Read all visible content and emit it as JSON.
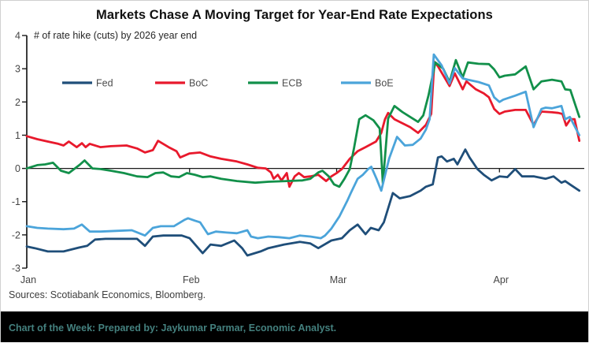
{
  "chart_data": {
    "type": "line",
    "title": "Markets Chase A Moving Target for Year-End Rate Expectations",
    "subtitle": "# of rate hike (cuts) by 2026 year end",
    "grid": "off",
    "legend_position": "top-left-inside",
    "x_axis": {
      "unit": "days since Jan 1",
      "domain": [
        0,
        106
      ],
      "ticks": [
        {
          "label": "Jan",
          "day": 0
        },
        {
          "label": "Feb",
          "day": 31
        },
        {
          "label": "Mar",
          "day": 59
        },
        {
          "label": "Apr",
          "day": 90
        }
      ]
    },
    "y_axis": {
      "min": -3,
      "max": 4,
      "tick_labels": [
        "4",
        "3",
        "2",
        "1",
        "0",
        "-1",
        "-2",
        "-3"
      ],
      "tick_values": [
        4,
        3,
        2,
        1,
        0,
        -1,
        -2,
        -3
      ]
    },
    "series": [
      {
        "name": "Fed",
        "color": "#1F4E79",
        "points": [
          [
            0,
            -2.35
          ],
          [
            1.5,
            -2.4
          ],
          [
            4,
            -2.5
          ],
          [
            7,
            -2.5
          ],
          [
            10,
            -2.38
          ],
          [
            11.5,
            -2.33
          ],
          [
            13,
            -2.14
          ],
          [
            15,
            -2.12
          ],
          [
            18,
            -2.12
          ],
          [
            21,
            -2.12
          ],
          [
            22.5,
            -2.33
          ],
          [
            24,
            -2.05
          ],
          [
            26,
            -2.02
          ],
          [
            28,
            -2.02
          ],
          [
            29.5,
            -2.02
          ],
          [
            31,
            -2.1
          ],
          [
            33.5,
            -2.55
          ],
          [
            35,
            -2.29
          ],
          [
            37,
            -2.33
          ],
          [
            39.5,
            -2.17
          ],
          [
            41,
            -2.4
          ],
          [
            42,
            -2.62
          ],
          [
            44.5,
            -2.5
          ],
          [
            46,
            -2.4
          ],
          [
            49,
            -2.29
          ],
          [
            52,
            -2.21
          ],
          [
            54,
            -2.26
          ],
          [
            55.5,
            -2.4
          ],
          [
            58,
            -2.17
          ],
          [
            60,
            -2.1
          ],
          [
            61.5,
            -1.86
          ],
          [
            63,
            -1.69
          ],
          [
            64.5,
            -1.98
          ],
          [
            65.5,
            -1.79
          ],
          [
            67,
            -1.86
          ],
          [
            68,
            -1.62
          ],
          [
            69.7,
            -0.74
          ],
          [
            71,
            -0.9
          ],
          [
            73,
            -0.83
          ],
          [
            75,
            -0.67
          ],
          [
            76,
            -0.55
          ],
          [
            77.3,
            -0.48
          ],
          [
            78.3,
            0.33
          ],
          [
            79,
            0.36
          ],
          [
            80,
            0.21
          ],
          [
            81.3,
            0.29
          ],
          [
            82,
            0.12
          ],
          [
            83.5,
            0.57
          ],
          [
            84.3,
            0.33
          ],
          [
            85.8,
            -0.02
          ],
          [
            87,
            -0.19
          ],
          [
            88.5,
            -0.36
          ],
          [
            90,
            -0.24
          ],
          [
            91.5,
            -0.26
          ],
          [
            93,
            -0.02
          ],
          [
            94.3,
            -0.24
          ],
          [
            96.6,
            -0.24
          ],
          [
            98.8,
            -0.31
          ],
          [
            100.3,
            -0.24
          ],
          [
            101.8,
            -0.43
          ],
          [
            102.5,
            -0.38
          ],
          [
            103.4,
            -0.48
          ],
          [
            105.2,
            -0.67
          ]
        ]
      },
      {
        "name": "BoC",
        "color": "#E8192C",
        "points": [
          [
            0,
            0.97
          ],
          [
            2,
            0.88
          ],
          [
            4,
            0.81
          ],
          [
            6,
            0.74
          ],
          [
            7,
            0.69
          ],
          [
            8,
            0.81
          ],
          [
            9.5,
            0.64
          ],
          [
            10.5,
            0.76
          ],
          [
            11.2,
            0.64
          ],
          [
            12,
            0.74
          ],
          [
            14,
            0.64
          ],
          [
            16,
            0.67
          ],
          [
            19,
            0.69
          ],
          [
            21,
            0.6
          ],
          [
            22.5,
            0.48
          ],
          [
            24,
            0.55
          ],
          [
            25,
            0.83
          ],
          [
            27,
            0.64
          ],
          [
            28.5,
            0.52
          ],
          [
            29.2,
            0.33
          ],
          [
            31,
            0.45
          ],
          [
            33,
            0.48
          ],
          [
            35,
            0.36
          ],
          [
            37,
            0.29
          ],
          [
            40,
            0.21
          ],
          [
            42,
            0.12
          ],
          [
            44,
            0.02
          ],
          [
            45.5,
            0
          ],
          [
            46.5,
            -0.12
          ],
          [
            47,
            -0.31
          ],
          [
            47.8,
            -0.19
          ],
          [
            48.5,
            -0.36
          ],
          [
            49.5,
            -0.14
          ],
          [
            50,
            -0.55
          ],
          [
            51,
            -0.24
          ],
          [
            51.8,
            -0.14
          ],
          [
            52.8,
            -0.26
          ],
          [
            54,
            -0.24
          ],
          [
            55.5,
            -0.19
          ],
          [
            57,
            -0.38
          ],
          [
            58,
            -0.24
          ],
          [
            59,
            -0.14
          ],
          [
            60,
            -0.02
          ],
          [
            61.5,
            0.29
          ],
          [
            63,
            0.52
          ],
          [
            64.5,
            0.64
          ],
          [
            66.5,
            0.81
          ],
          [
            67.5,
            1.07
          ],
          [
            68.2,
            1.48
          ],
          [
            68.8,
            1.67
          ],
          [
            70,
            1.48
          ],
          [
            71.5,
            1.36
          ],
          [
            73,
            1.24
          ],
          [
            74.5,
            1.07
          ],
          [
            76,
            1.31
          ],
          [
            77,
            1.64
          ],
          [
            77.6,
            3.21
          ],
          [
            78.3,
            3.07
          ],
          [
            80.5,
            2.48
          ],
          [
            81.5,
            2.86
          ],
          [
            83,
            2.38
          ],
          [
            83.7,
            2.62
          ],
          [
            85.5,
            2.38
          ],
          [
            87,
            2.26
          ],
          [
            88,
            2.14
          ],
          [
            89,
            1.79
          ],
          [
            90,
            1.64
          ],
          [
            91,
            1.71
          ],
          [
            93,
            1.76
          ],
          [
            95,
            1.76
          ],
          [
            96.5,
            1.31
          ],
          [
            98,
            1.71
          ],
          [
            100,
            1.69
          ],
          [
            101.2,
            1.67
          ],
          [
            102,
            1.64
          ],
          [
            102.7,
            1.29
          ],
          [
            103.5,
            1.48
          ],
          [
            104.3,
            1.48
          ],
          [
            105.2,
            0.83
          ]
        ]
      },
      {
        "name": "ECB",
        "color": "#12904A",
        "points": [
          [
            0,
            0
          ],
          [
            2,
            0.1
          ],
          [
            3.5,
            0.12
          ],
          [
            5,
            0.17
          ],
          [
            6.5,
            -0.07
          ],
          [
            8,
            -0.14
          ],
          [
            10,
            0.1
          ],
          [
            11,
            0.24
          ],
          [
            12.5,
            0
          ],
          [
            14,
            -0.02
          ],
          [
            16,
            -0.07
          ],
          [
            18.5,
            -0.14
          ],
          [
            21,
            -0.24
          ],
          [
            23,
            -0.26
          ],
          [
            24.5,
            -0.14
          ],
          [
            26,
            -0.12
          ],
          [
            27.5,
            -0.24
          ],
          [
            29,
            -0.26
          ],
          [
            30.5,
            -0.14
          ],
          [
            32,
            -0.19
          ],
          [
            33.5,
            -0.26
          ],
          [
            35,
            -0.24
          ],
          [
            37,
            -0.31
          ],
          [
            40,
            -0.38
          ],
          [
            43.5,
            -0.43
          ],
          [
            46,
            -0.4
          ],
          [
            49.5,
            -0.38
          ],
          [
            52.5,
            -0.36
          ],
          [
            54,
            -0.31
          ],
          [
            55.5,
            -0.12
          ],
          [
            56.3,
            -0.07
          ],
          [
            57.5,
            -0.24
          ],
          [
            58.5,
            -0.48
          ],
          [
            59.5,
            -0.55
          ],
          [
            60.5,
            -0.31
          ],
          [
            61.5,
            -0.02
          ],
          [
            62.3,
            0.6
          ],
          [
            63.3,
            1.48
          ],
          [
            64.5,
            1.6
          ],
          [
            66,
            1.45
          ],
          [
            67.2,
            1.2
          ],
          [
            67.8,
            -0.45
          ],
          [
            68.8,
            1.5
          ],
          [
            70,
            1.88
          ],
          [
            71.5,
            1.7
          ],
          [
            73,
            1.55
          ],
          [
            74.5,
            1.4
          ],
          [
            75.5,
            1.6
          ],
          [
            76.5,
            2.2
          ],
          [
            77.8,
            3.19
          ],
          [
            79.3,
            3
          ],
          [
            80.5,
            2.6
          ],
          [
            81.7,
            3.26
          ],
          [
            83,
            2.74
          ],
          [
            84,
            3.19
          ],
          [
            86,
            3.15
          ],
          [
            88,
            3.14
          ],
          [
            89,
            2.98
          ],
          [
            90,
            2.74
          ],
          [
            91,
            2.79
          ],
          [
            93,
            2.83
          ],
          [
            95,
            3.07
          ],
          [
            96.5,
            2.38
          ],
          [
            98,
            2.62
          ],
          [
            100,
            2.67
          ],
          [
            101.8,
            2.62
          ],
          [
            102.5,
            2.38
          ],
          [
            103.5,
            2.36
          ],
          [
            105.2,
            1.55
          ]
        ]
      },
      {
        "name": "BoE",
        "color": "#4BA4DA",
        "points": [
          [
            0,
            -1.74
          ],
          [
            2,
            -1.79
          ],
          [
            4,
            -1.81
          ],
          [
            7,
            -1.83
          ],
          [
            9,
            -1.81
          ],
          [
            10.5,
            -1.69
          ],
          [
            12,
            -1.9
          ],
          [
            14,
            -1.9
          ],
          [
            17,
            -1.88
          ],
          [
            20,
            -1.86
          ],
          [
            22.5,
            -2.02
          ],
          [
            24,
            -1.79
          ],
          [
            25.5,
            -1.74
          ],
          [
            28,
            -1.74
          ],
          [
            30,
            -1.55
          ],
          [
            30.7,
            -1.5
          ],
          [
            32,
            -1.57
          ],
          [
            33,
            -1.62
          ],
          [
            34.5,
            -1.98
          ],
          [
            36,
            -1.9
          ],
          [
            38,
            -1.93
          ],
          [
            40,
            -1.95
          ],
          [
            42,
            -1.86
          ],
          [
            42.7,
            -2.05
          ],
          [
            44,
            -2.1
          ],
          [
            46,
            -2.05
          ],
          [
            48,
            -2.07
          ],
          [
            50,
            -2.1
          ],
          [
            52,
            -2.02
          ],
          [
            54,
            -2.05
          ],
          [
            56,
            -2.1
          ],
          [
            56.8,
            -2.02
          ],
          [
            58,
            -1.81
          ],
          [
            59.5,
            -1.45
          ],
          [
            61,
            -0.98
          ],
          [
            61.7,
            -0.74
          ],
          [
            63,
            -0.31
          ],
          [
            64,
            -0.19
          ],
          [
            65,
            -0.02
          ],
          [
            65.6,
            0.05
          ],
          [
            66.6,
            -0.31
          ],
          [
            67.5,
            -0.67
          ],
          [
            69,
            0.3
          ],
          [
            70.5,
            0.95
          ],
          [
            72,
            0.69
          ],
          [
            73.5,
            0.71
          ],
          [
            75,
            0.9
          ],
          [
            76,
            1.17
          ],
          [
            76.7,
            1.48
          ],
          [
            77.5,
            3.43
          ],
          [
            79,
            3.1
          ],
          [
            80.5,
            2.55
          ],
          [
            81.5,
            3.02
          ],
          [
            83,
            2.71
          ],
          [
            84,
            2.67
          ],
          [
            86,
            2.6
          ],
          [
            88,
            2.5
          ],
          [
            89,
            2.14
          ],
          [
            90,
            2
          ],
          [
            90.7,
            2.07
          ],
          [
            93,
            2.19
          ],
          [
            95,
            2.31
          ],
          [
            96.5,
            1.24
          ],
          [
            98,
            1.79
          ],
          [
            98.8,
            1.83
          ],
          [
            100,
            1.81
          ],
          [
            101.8,
            1.88
          ],
          [
            102.5,
            1.48
          ],
          [
            103.4,
            1.55
          ],
          [
            105.2,
            1
          ]
        ]
      }
    ]
  },
  "source_note": "Sources: Scotiabank Economics, Bloomberg.",
  "footer": {
    "text": "Chart of the Week: Prepared by: Jaykumar Parmar, Economic Analyst.",
    "text_color": "#44807E",
    "background": "#000000"
  }
}
